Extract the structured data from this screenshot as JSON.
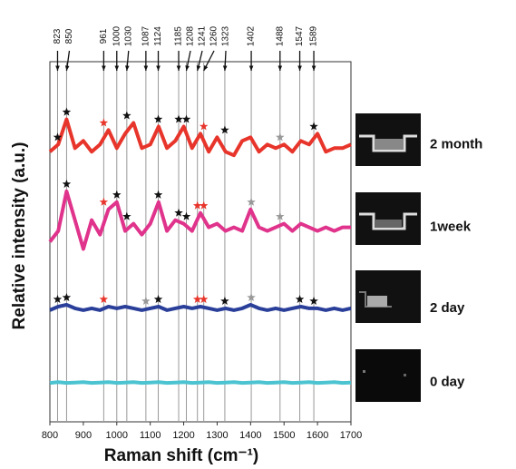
{
  "chart_data": {
    "type": "line",
    "xlabel": "Raman shift (cm⁻¹)",
    "ylabel": "Relative intensity (a.u.)",
    "xlim": [
      800,
      1700
    ],
    "xticks": [
      800,
      900,
      1000,
      1100,
      1200,
      1300,
      1400,
      1500,
      1600,
      1700
    ],
    "ylim": [
      0,
      10
    ],
    "peak_lines": [
      823,
      850,
      961,
      1000,
      1030,
      1087,
      1124,
      1185,
      1208,
      1241,
      1260,
      1323,
      1402,
      1488,
      1547,
      1589
    ],
    "peak_line_color": "#999999",
    "x": [
      800,
      825,
      850,
      875,
      900,
      925,
      950,
      975,
      1000,
      1025,
      1050,
      1075,
      1100,
      1125,
      1150,
      1175,
      1200,
      1225,
      1250,
      1275,
      1300,
      1325,
      1350,
      1375,
      1400,
      1425,
      1450,
      1475,
      1500,
      1525,
      1550,
      1575,
      1600,
      1625,
      1650,
      1675,
      1700
    ],
    "series": [
      {
        "name": "2 month",
        "color": "#e8352b",
        "values": [
          7.5,
          7.7,
          8.4,
          7.6,
          7.8,
          7.5,
          7.7,
          8.1,
          7.6,
          8.0,
          8.3,
          7.6,
          7.7,
          8.2,
          7.6,
          7.8,
          8.2,
          7.6,
          8.0,
          7.5,
          7.9,
          7.5,
          7.4,
          7.8,
          7.9,
          7.5,
          7.7,
          7.6,
          7.7,
          7.5,
          7.8,
          7.7,
          8.0,
          7.5,
          7.6,
          7.6,
          7.7
        ],
        "stars": [
          {
            "x": 823,
            "color": "#111111"
          },
          {
            "x": 850,
            "color": "#111111"
          },
          {
            "x": 961,
            "color": "#e8352b"
          },
          {
            "x": 1030,
            "color": "#111111"
          },
          {
            "x": 1124,
            "color": "#111111"
          },
          {
            "x": 1185,
            "color": "#111111"
          },
          {
            "x": 1208,
            "color": "#111111"
          },
          {
            "x": 1260,
            "color": "#e8352b"
          },
          {
            "x": 1323,
            "color": "#111111"
          },
          {
            "x": 1488,
            "color": "#999999"
          },
          {
            "x": 1589,
            "color": "#111111"
          }
        ]
      },
      {
        "name": "1week",
        "color": "#e0338c",
        "values": [
          5.0,
          5.3,
          6.4,
          5.6,
          4.8,
          5.6,
          5.2,
          5.9,
          6.1,
          5.3,
          5.5,
          5.2,
          5.5,
          6.1,
          5.3,
          5.6,
          5.5,
          5.3,
          5.8,
          5.4,
          5.5,
          5.3,
          5.4,
          5.3,
          5.9,
          5.4,
          5.3,
          5.4,
          5.5,
          5.3,
          5.5,
          5.4,
          5.3,
          5.4,
          5.3,
          5.4,
          5.4
        ],
        "stars": [
          {
            "x": 850,
            "color": "#111111"
          },
          {
            "x": 961,
            "color": "#e8352b"
          },
          {
            "x": 1000,
            "color": "#111111"
          },
          {
            "x": 1030,
            "color": "#111111"
          },
          {
            "x": 1124,
            "color": "#111111"
          },
          {
            "x": 1185,
            "color": "#111111"
          },
          {
            "x": 1208,
            "color": "#111111"
          },
          {
            "x": 1241,
            "color": "#e8352b"
          },
          {
            "x": 1260,
            "color": "#e8352b"
          },
          {
            "x": 1402,
            "color": "#999999"
          },
          {
            "x": 1488,
            "color": "#999999"
          }
        ]
      },
      {
        "name": "2 day",
        "color": "#2a3f9a",
        "values": [
          3.1,
          3.2,
          3.25,
          3.15,
          3.1,
          3.15,
          3.1,
          3.2,
          3.15,
          3.2,
          3.15,
          3.1,
          3.15,
          3.2,
          3.1,
          3.15,
          3.2,
          3.15,
          3.2,
          3.15,
          3.1,
          3.15,
          3.1,
          3.15,
          3.25,
          3.15,
          3.1,
          3.15,
          3.1,
          3.15,
          3.2,
          3.15,
          3.15,
          3.1,
          3.15,
          3.1,
          3.15
        ],
        "stars": [
          {
            "x": 823,
            "color": "#111111"
          },
          {
            "x": 850,
            "color": "#111111"
          },
          {
            "x": 961,
            "color": "#e8352b"
          },
          {
            "x": 1087,
            "color": "#999999"
          },
          {
            "x": 1124,
            "color": "#111111"
          },
          {
            "x": 1241,
            "color": "#e8352b"
          },
          {
            "x": 1260,
            "color": "#e8352b"
          },
          {
            "x": 1323,
            "color": "#111111"
          },
          {
            "x": 1402,
            "color": "#999999"
          },
          {
            "x": 1547,
            "color": "#111111"
          },
          {
            "x": 1589,
            "color": "#111111"
          }
        ]
      },
      {
        "name": "0 day",
        "color": "#4cc3d0",
        "values": [
          1.08,
          1.1,
          1.08,
          1.09,
          1.1,
          1.08,
          1.09,
          1.1,
          1.08,
          1.09,
          1.1,
          1.08,
          1.09,
          1.1,
          1.08,
          1.09,
          1.1,
          1.08,
          1.09,
          1.1,
          1.08,
          1.09,
          1.1,
          1.08,
          1.09,
          1.1,
          1.08,
          1.09,
          1.1,
          1.08,
          1.09,
          1.1,
          1.08,
          1.09,
          1.1,
          1.08,
          1.09
        ],
        "stars": []
      }
    ]
  }
}
